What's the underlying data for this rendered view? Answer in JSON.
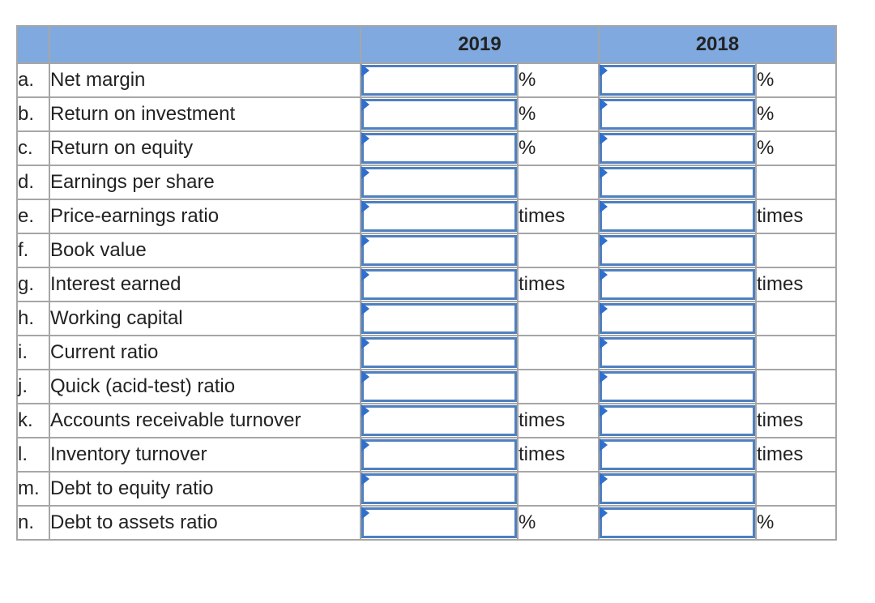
{
  "header": {
    "col_2019": "2019",
    "col_2018": "2018"
  },
  "rows": [
    {
      "letter": "a.",
      "label": "Net margin",
      "unit_2019": "%",
      "unit_2018": "%",
      "value_2019": "",
      "value_2018": ""
    },
    {
      "letter": "b.",
      "label": "Return on investment",
      "unit_2019": "%",
      "unit_2018": "%",
      "value_2019": "",
      "value_2018": ""
    },
    {
      "letter": "c.",
      "label": "Return on equity",
      "unit_2019": "%",
      "unit_2018": "%",
      "value_2019": "",
      "value_2018": ""
    },
    {
      "letter": "d.",
      "label": "Earnings per share",
      "unit_2019": "",
      "unit_2018": "",
      "value_2019": "",
      "value_2018": ""
    },
    {
      "letter": "e.",
      "label": "Price-earnings ratio",
      "unit_2019": "times",
      "unit_2018": "times",
      "value_2019": "",
      "value_2018": ""
    },
    {
      "letter": "f.",
      "label": "Book value",
      "unit_2019": "",
      "unit_2018": "",
      "value_2019": "",
      "value_2018": ""
    },
    {
      "letter": "g.",
      "label": "Interest earned",
      "unit_2019": "times",
      "unit_2018": "times",
      "value_2019": "",
      "value_2018": ""
    },
    {
      "letter": "h.",
      "label": "Working capital",
      "unit_2019": "",
      "unit_2018": "",
      "value_2019": "",
      "value_2018": ""
    },
    {
      "letter": "i.",
      "label": "Current ratio",
      "unit_2019": "",
      "unit_2018": "",
      "value_2019": "",
      "value_2018": ""
    },
    {
      "letter": "j.",
      "label": "Quick (acid-test) ratio",
      "unit_2019": "",
      "unit_2018": "",
      "value_2019": "",
      "value_2018": ""
    },
    {
      "letter": "k.",
      "label": "Accounts receivable turnover",
      "unit_2019": "times",
      "unit_2018": "times",
      "value_2019": "",
      "value_2018": ""
    },
    {
      "letter": "l.",
      "label": "Inventory turnover",
      "unit_2019": "times",
      "unit_2018": "times",
      "value_2019": "",
      "value_2018": ""
    },
    {
      "letter": "m.",
      "label": "Debt to equity ratio",
      "unit_2019": "",
      "unit_2018": "",
      "value_2019": "",
      "value_2018": ""
    },
    {
      "letter": "n.",
      "label": "Debt to assets ratio",
      "unit_2019": "%",
      "unit_2018": "%",
      "value_2019": "",
      "value_2018": ""
    }
  ],
  "colors": {
    "header_bg": "#80a9df",
    "input_border": "#4f80c0",
    "flag": "#2f6fce",
    "grid": "#a6a6a6"
  }
}
